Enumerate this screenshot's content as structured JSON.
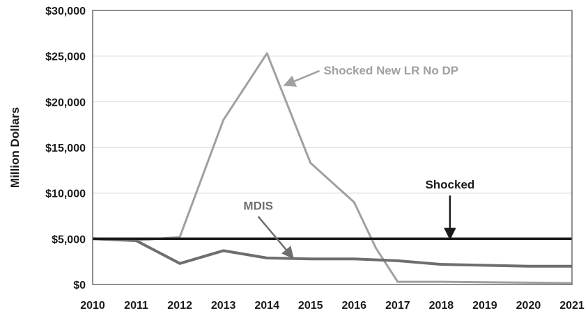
{
  "chart_data": {
    "type": "line",
    "ylabel": "Million Dollars",
    "x": [
      2010,
      2011,
      2012,
      2013,
      2014,
      2015,
      2016,
      2017,
      2018,
      2019,
      2020,
      2021
    ],
    "ylim": [
      0,
      30000
    ],
    "yticks": [
      0,
      5000,
      10000,
      15000,
      20000,
      25000,
      30000
    ],
    "ytick_labels": [
      "$0",
      "$5,000",
      "$10,000",
      "$15,000",
      "$20,000",
      "$25,000",
      "$30,000"
    ],
    "xtick_labels": [
      "2010",
      "2011",
      "2012",
      "2013",
      "2014",
      "2015",
      "2016",
      "2017",
      "2018",
      "2019",
      "2020",
      "2021"
    ],
    "grid": "horizontal",
    "series": [
      {
        "name": "Shocked New LR No DP",
        "color": "#a0a0a0",
        "x": [
          2010,
          2011,
          2012,
          2013,
          2014,
          2015,
          2016,
          2016.5,
          2017,
          2018,
          2019,
          2020,
          2021
        ],
        "values": [
          5000,
          4800,
          5200,
          18000,
          25300,
          13300,
          9000,
          4000,
          300,
          300,
          250,
          200,
          150
        ]
      },
      {
        "name": "MDIS",
        "color": "#6e6e6e",
        "x": [
          2010,
          2011,
          2012,
          2013,
          2014,
          2015,
          2016,
          2017,
          2018,
          2019,
          2020,
          2021
        ],
        "values": [
          5000,
          4800,
          2300,
          3700,
          2900,
          2800,
          2800,
          2600,
          2200,
          2100,
          2000,
          2000
        ]
      },
      {
        "name": "Shocked",
        "color": "#1a1a1a",
        "x": [
          2010,
          2011,
          2012,
          2013,
          2014,
          2015,
          2016,
          2017,
          2018,
          2019,
          2020,
          2021
        ],
        "values": [
          5000,
          5000,
          5000,
          5000,
          5000,
          5000,
          5000,
          5000,
          5000,
          5000,
          5000,
          5000
        ]
      }
    ],
    "annotations": [
      {
        "text": "Shocked New LR No DP",
        "series": 0,
        "point_x": 2014.4,
        "point_y": 21800,
        "label_x": 2015.3,
        "label_y": 23000,
        "anchor": "start",
        "color": "#a0a0a0"
      },
      {
        "text": "MDIS",
        "series": 1,
        "point_x": 2014.6,
        "point_y": 2900,
        "label_x": 2013.8,
        "label_y": 8200,
        "anchor": "middle",
        "color": "#6e6e6e"
      },
      {
        "text": "Shocked",
        "series": 2,
        "point_x": 2018.2,
        "point_y": 5000,
        "label_x": 2018.2,
        "label_y": 10500,
        "anchor": "middle",
        "color": "#1a1a1a"
      }
    ]
  }
}
